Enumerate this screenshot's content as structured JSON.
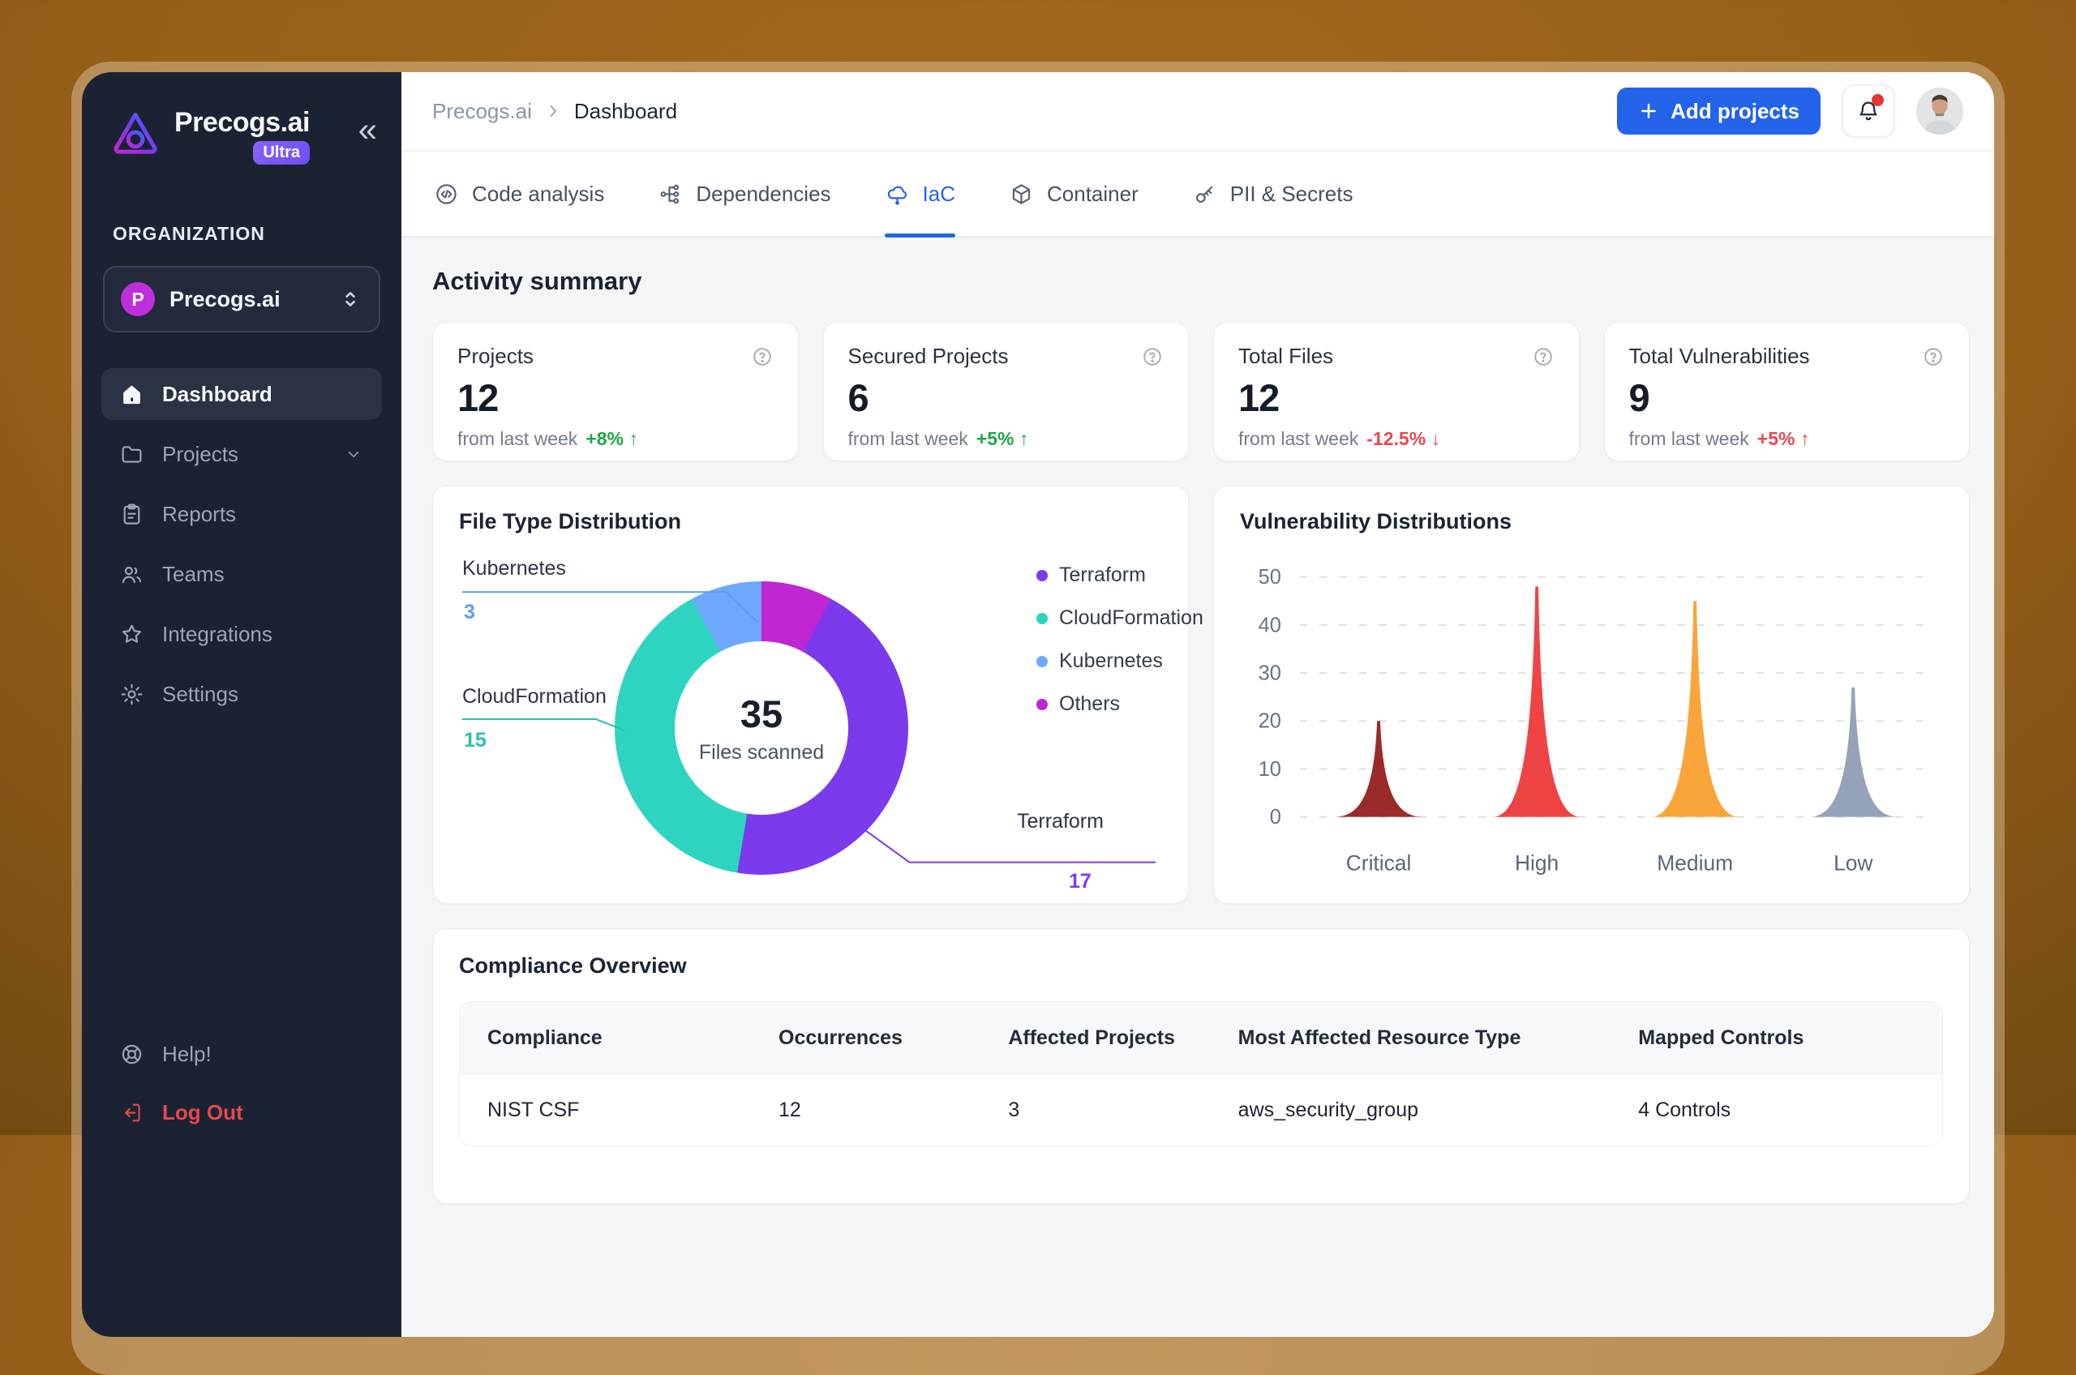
{
  "sidebar": {
    "brand": {
      "name": "Precogs.ai",
      "badge": "Ultra"
    },
    "collapse_icon": "«",
    "section_label": "ORGANIZATION",
    "org_selector": {
      "initial": "P",
      "name": "Precogs.ai"
    },
    "nav": [
      {
        "label": "Dashboard",
        "icon": "home-icon",
        "active": true
      },
      {
        "label": "Projects",
        "icon": "folder-icon",
        "chevron": true
      },
      {
        "label": "Reports",
        "icon": "clipboard-icon"
      },
      {
        "label": "Teams",
        "icon": "users-icon"
      },
      {
        "label": "Integrations",
        "icon": "star-icon"
      },
      {
        "label": "Settings",
        "icon": "gear-icon"
      }
    ],
    "footer": [
      {
        "label": "Help!",
        "icon": "life-ring-icon"
      },
      {
        "label": "Log Out",
        "icon": "logout-icon",
        "danger": true
      }
    ]
  },
  "header": {
    "breadcrumb_root": "Precogs.ai",
    "breadcrumb_current": "Dashboard",
    "add_button_label": "Add projects"
  },
  "tabs": [
    {
      "label": "Code analysis",
      "icon": "code-icon"
    },
    {
      "label": "Dependencies",
      "icon": "dependencies-icon"
    },
    {
      "label": "IaC",
      "icon": "cloud-icon",
      "active": true
    },
    {
      "label": "Container",
      "icon": "cube-icon"
    },
    {
      "label": "PII & Secrets",
      "icon": "key-icon"
    }
  ],
  "activity": {
    "heading": "Activity summary",
    "cards": [
      {
        "title": "Projects",
        "value": "12",
        "sub": "from last week",
        "delta": "+8%",
        "arrow": "↑",
        "trend_color": "#1ea64a"
      },
      {
        "title": "Secured Projects",
        "value": "6",
        "sub": "from last week",
        "delta": "+5%",
        "arrow": "↑",
        "trend_color": "#1ea64a"
      },
      {
        "title": "Total Files",
        "value": "12",
        "sub": "from last week",
        "delta": "-12.5%",
        "arrow": "↓",
        "trend_color": "#e5484d"
      },
      {
        "title": "Total Vulnerabilities",
        "value": "9",
        "sub": "from last week",
        "delta": "+5%",
        "arrow": "↑",
        "trend_color": "#e5484d"
      }
    ]
  },
  "chart_data": [
    {
      "type": "pie",
      "subtype": "donut",
      "title": "File Type Distribution",
      "center_value": "35",
      "center_label": "Files scanned",
      "segments": [
        {
          "label": "Others",
          "value": null,
          "display_weight": 3,
          "color": "#c026d3"
        },
        {
          "label": "Terraform",
          "value": 17,
          "display_weight": 17,
          "color": "#7c3aed"
        },
        {
          "label": "CloudFormation",
          "value": 15,
          "display_weight": 15,
          "color": "#2dd4bf"
        },
        {
          "label": "Kubernetes",
          "value": 3,
          "display_weight": 3,
          "color": "#6ea8fe"
        }
      ],
      "legend": [
        {
          "label": "Terraform",
          "color": "#7c3aed"
        },
        {
          "label": "CloudFormation",
          "color": "#2dd4bf"
        },
        {
          "label": "Kubernetes",
          "color": "#6ea8fe"
        },
        {
          "label": "Others",
          "color": "#c026d3"
        }
      ],
      "callouts": [
        {
          "label": "Kubernetes",
          "value": "3",
          "color": "#5b9cf8"
        },
        {
          "label": "CloudFormation",
          "value": "15",
          "color": "#2bbfae"
        },
        {
          "label": "Terraform",
          "value": "17",
          "color": "#7c3aed"
        }
      ],
      "legend_position": "right"
    },
    {
      "type": "area",
      "subtype": "spike",
      "title": "Vulnerability Distributions",
      "categories": [
        "Critical",
        "High",
        "Medium",
        "Low"
      ],
      "values": [
        20,
        48,
        45,
        27
      ],
      "colors": [
        "#9a2b2b",
        "#ef4444",
        "#f9a53a",
        "#94a3b8"
      ],
      "ylim": [
        0,
        50
      ],
      "yticks": [
        0,
        10,
        20,
        30,
        40,
        50
      ],
      "grid": "dashed",
      "xlabel": "",
      "ylabel": ""
    }
  ],
  "compliance": {
    "title": "Compliance Overview",
    "columns": [
      "Compliance",
      "Occurrences",
      "Affected Projects",
      "Most Affected Resource Type",
      "Mapped Controls"
    ],
    "rows": [
      [
        "NIST CSF",
        "12",
        "3",
        "aws_security_group",
        "4 Controls"
      ]
    ]
  }
}
